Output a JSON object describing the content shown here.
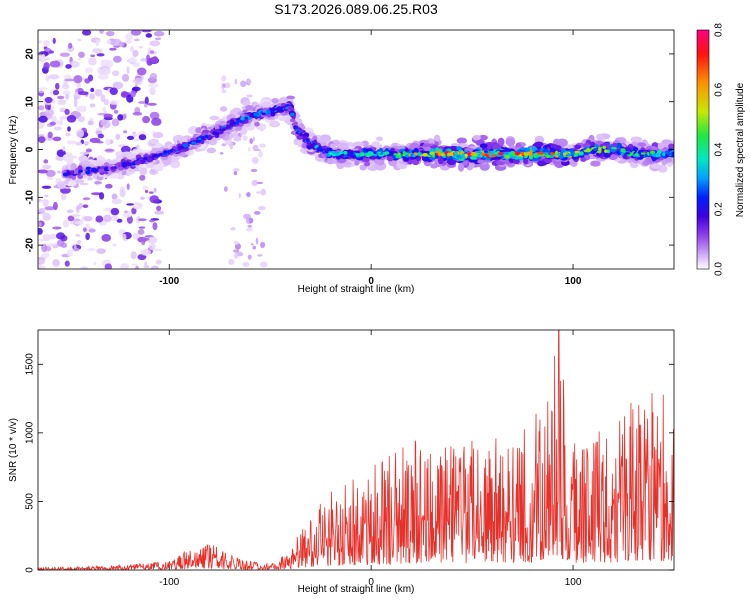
{
  "title": "S173.2026.089.06.25.R03",
  "colors": {
    "background": "#ffffff",
    "line": "#e8302a",
    "colormap": [
      "#ffffff",
      "#d8b8f8",
      "#9040e8",
      "#4000e0",
      "#0020ff",
      "#00a0ff",
      "#00e8c0",
      "#20e840",
      "#c8e800",
      "#ff9000",
      "#ff1010",
      "#ff0080"
    ]
  },
  "chart_data": [
    {
      "type": "heatmap",
      "description_key": "spectrogram",
      "xlabel": "Height of straight line (km)",
      "ylabel": "Frequency (Hz)",
      "xlim": [
        -165,
        150
      ],
      "ylim": [
        -25,
        25
      ],
      "xticks": [
        -100,
        0,
        100
      ],
      "xtick_labels": [
        "-100",
        "0",
        "100"
      ],
      "yticks": [
        -20,
        -10,
        0,
        10,
        20
      ],
      "ytick_labels": [
        "-20",
        "-10",
        "0",
        "10",
        "20"
      ],
      "colorbar": {
        "label": "Normalized spectral amplitude",
        "range": [
          0,
          0.8
        ],
        "ticks": [
          0.0,
          0.2,
          0.4,
          0.6,
          0.8
        ],
        "tick_labels": [
          "0.0",
          "0.2",
          "0.4",
          "0.6",
          "0.8"
        ]
      },
      "ridge": {
        "x": [
          -150,
          -130,
          -110,
          -90,
          -75,
          -60,
          -50,
          -40,
          -37,
          -30,
          -20,
          0,
          20,
          40,
          60,
          80,
          100,
          110,
          120,
          130,
          140,
          150
        ],
        "y": [
          -5,
          -4,
          -2,
          1,
          4,
          7,
          8,
          9,
          4,
          1,
          -1,
          -1,
          -1,
          -1,
          -1,
          -1,
          -1,
          0,
          0,
          -1,
          -1,
          -1
        ]
      },
      "intensity": {
        "x": [
          -150,
          -110,
          -80,
          -60,
          -40,
          -20,
          0,
          20,
          40,
          60,
          80,
          100,
          130,
          150
        ],
        "amplitude": [
          0.22,
          0.25,
          0.3,
          0.32,
          0.3,
          0.35,
          0.42,
          0.5,
          0.68,
          0.62,
          0.66,
          0.5,
          0.45,
          0.4
        ]
      }
    },
    {
      "type": "line",
      "description_key": "snr",
      "xlabel": "Height of straight line (km)",
      "ylabel": "SNR (10 * v/v)",
      "xlim": [
        -165,
        150
      ],
      "ylim": [
        0,
        1750
      ],
      "xticks": [
        -100,
        0,
        100
      ],
      "xtick_labels": [
        "-100",
        "0",
        "100"
      ],
      "yticks": [
        0,
        500,
        1000,
        1500
      ],
      "ytick_labels": [
        "0",
        "500",
        "1000",
        "1500"
      ],
      "envelope": {
        "x": [
          -165,
          -130,
          -100,
          -90,
          -80,
          -70,
          -60,
          -50,
          -40,
          -30,
          -20,
          0,
          20,
          40,
          60,
          80,
          93,
          100,
          120,
          130,
          140,
          150
        ],
        "y": [
          20,
          30,
          70,
          160,
          230,
          120,
          70,
          50,
          150,
          420,
          600,
          750,
          950,
          1000,
          1000,
          1050,
          1750,
          1000,
          1100,
          1400,
          1300,
          1300
        ]
      }
    }
  ]
}
